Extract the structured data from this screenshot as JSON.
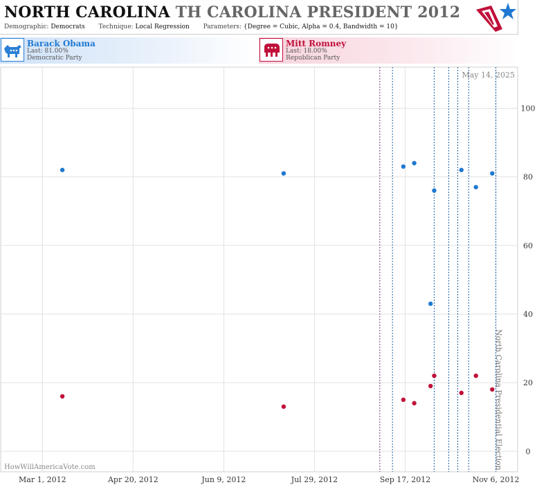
{
  "header": {
    "title_main": "NORTH CAROLINA",
    "title_sub": "TH CAROLINA PRESIDENT 2012",
    "demographic_label": "Demographic:",
    "demographic_value": "Democrats",
    "technique_label": "Technique:",
    "technique_value": "Local Regression",
    "parameters_label": "Parameters:",
    "parameters_value": "{Degree = Cubic, Alpha = 0.4, Bandwidth = 10}"
  },
  "candidates": [
    {
      "name": "Barack Obama",
      "last": "Last: 81.00%",
      "party": "Democratic Party",
      "color": "#1f78d1",
      "icon": "donkey-icon"
    },
    {
      "name": "Mitt Romney",
      "last": "Last: 18.00%",
      "party": "Republican Party",
      "color": "#c0103a",
      "icon": "elephant-icon"
    }
  ],
  "colors": {
    "obama": "#1f78d1",
    "romney": "#c0103a",
    "grid": "#e2e2e2",
    "marker_blue": "#1a5fa3",
    "marker_purple": "#7a2a8a"
  },
  "chart_data": {
    "type": "scatter",
    "date_label": "May 14, 2025",
    "watermark": "HowWillAmericaVote.com",
    "election_label": "North Carolina Presidential Election",
    "x_ticks": [
      {
        "date": "2012-03-01",
        "label": "Mar 1, 2012"
      },
      {
        "date": "2012-04-20",
        "label": "Apr 20, 2012"
      },
      {
        "date": "2012-06-09",
        "label": "Jun 9, 2012"
      },
      {
        "date": "2012-07-29",
        "label": "Jul 29, 2012"
      },
      {
        "date": "2012-09-17",
        "label": "Sep 17, 2012"
      },
      {
        "date": "2012-11-06",
        "label": "Nov 6, 2012"
      }
    ],
    "xlim": [
      "2012-02-07",
      "2012-11-18"
    ],
    "y_ticks": [
      0,
      20,
      40,
      60,
      80,
      100
    ],
    "ylim": [
      -6,
      112
    ],
    "grid": true,
    "event_lines": [
      {
        "date": "2012-09-03",
        "style": "purple"
      },
      {
        "date": "2012-09-10",
        "style": "blue"
      },
      {
        "date": "2012-10-03",
        "style": "blue"
      },
      {
        "date": "2012-10-11",
        "style": "blue"
      },
      {
        "date": "2012-10-16",
        "style": "blue"
      },
      {
        "date": "2012-10-22",
        "style": "blue"
      },
      {
        "date": "2012-11-06",
        "style": "blue"
      }
    ],
    "series": [
      {
        "name": "Barack Obama",
        "color": "#1f78d1",
        "points": [
          {
            "x": "2012-03-12",
            "y": 82
          },
          {
            "x": "2012-07-12",
            "y": 81
          },
          {
            "x": "2012-09-16",
            "y": 83
          },
          {
            "x": "2012-09-22",
            "y": 84
          },
          {
            "x": "2012-10-01",
            "y": 43
          },
          {
            "x": "2012-10-03",
            "y": 76
          },
          {
            "x": "2012-10-18",
            "y": 82
          },
          {
            "x": "2012-10-26",
            "y": 77
          },
          {
            "x": "2012-11-04",
            "y": 81
          }
        ]
      },
      {
        "name": "Mitt Romney",
        "color": "#c0103a",
        "points": [
          {
            "x": "2012-03-12",
            "y": 16
          },
          {
            "x": "2012-07-12",
            "y": 13
          },
          {
            "x": "2012-09-16",
            "y": 15
          },
          {
            "x": "2012-09-22",
            "y": 14
          },
          {
            "x": "2012-10-01",
            "y": 19
          },
          {
            "x": "2012-10-03",
            "y": 22
          },
          {
            "x": "2012-10-18",
            "y": 17
          },
          {
            "x": "2012-10-26",
            "y": 22
          },
          {
            "x": "2012-11-04",
            "y": 18
          }
        ]
      }
    ]
  }
}
